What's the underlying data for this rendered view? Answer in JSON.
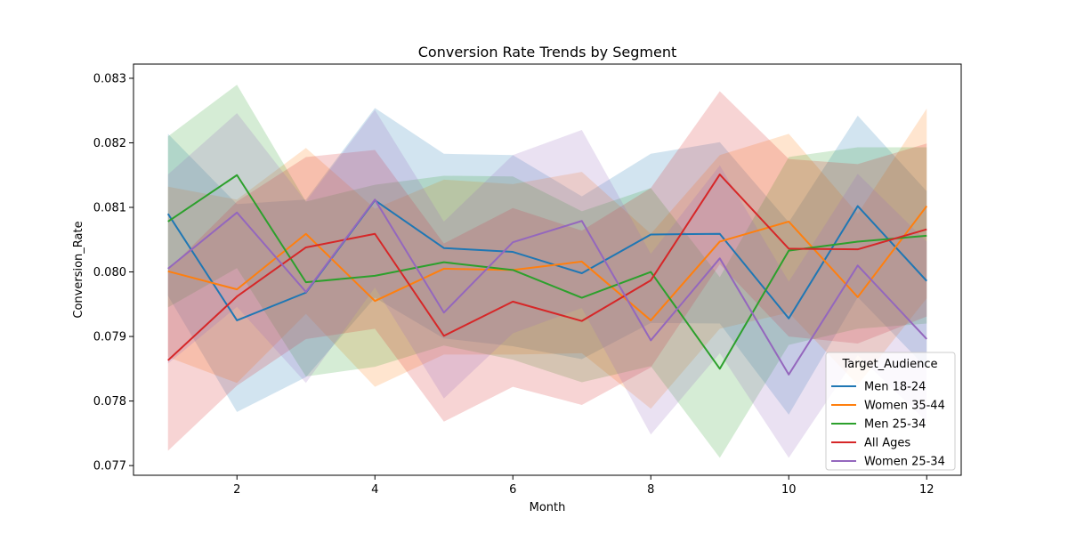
{
  "chart_data": {
    "type": "line",
    "title": "Conversion Rate Trends by Segment",
    "xlabel": "Month",
    "ylabel": "Conversion_Rate",
    "xlim": [
      0.5,
      12.5
    ],
    "ylim": [
      0.07685,
      0.08322
    ],
    "x_ticks": [
      2,
      4,
      6,
      8,
      10,
      12
    ],
    "y_ticks": [
      0.077,
      0.078,
      0.079,
      0.08,
      0.081,
      0.082,
      0.083
    ],
    "grid": false,
    "legend_title": "Target_Audience",
    "legend_position": "lower-right",
    "x": [
      1,
      2,
      3,
      4,
      5,
      6,
      7,
      8,
      9,
      10,
      11,
      12
    ],
    "series": [
      {
        "name": "Men 18-24",
        "color": "#1f77b4",
        "values": [
          0.0809,
          0.07925,
          0.07968,
          0.08111,
          0.08037,
          0.08031,
          0.07998,
          0.08058,
          0.08059,
          0.07928,
          0.08102,
          0.07986
        ],
        "ci_upper": [
          0.08214,
          0.08105,
          0.08112,
          0.08254,
          0.08183,
          0.08181,
          0.08117,
          0.08183,
          0.08201,
          0.08077,
          0.08242,
          0.08125
        ],
        "ci_lower": [
          0.07963,
          0.07783,
          0.07837,
          0.0796,
          0.07897,
          0.07885,
          0.07865,
          0.07921,
          0.0792,
          0.07779,
          0.07961,
          0.07851
        ]
      },
      {
        "name": "Women 35-44",
        "color": "#ff7f0e",
        "values": [
          0.08001,
          0.07973,
          0.08059,
          0.07955,
          0.08005,
          0.08003,
          0.08016,
          0.07925,
          0.08047,
          0.08078,
          0.07961,
          0.08102
        ],
        "ci_upper": [
          0.08132,
          0.08112,
          0.08192,
          0.08098,
          0.08143,
          0.08136,
          0.08155,
          0.08059,
          0.08181,
          0.08214,
          0.0809,
          0.08253
        ],
        "ci_lower": [
          0.07868,
          0.07828,
          0.07935,
          0.07822,
          0.07872,
          0.07872,
          0.07874,
          0.07788,
          0.07912,
          0.07937,
          0.07825,
          0.07959
        ]
      },
      {
        "name": "Men 25-34",
        "color": "#2ca02c",
        "values": [
          0.08078,
          0.0815,
          0.07984,
          0.07994,
          0.08015,
          0.08003,
          0.0796,
          0.08,
          0.0785,
          0.08033,
          0.08047,
          0.08056
        ],
        "ci_upper": [
          0.0821,
          0.0829,
          0.08109,
          0.08135,
          0.08149,
          0.08148,
          0.08094,
          0.0813,
          0.07992,
          0.08178,
          0.08193,
          0.08193
        ],
        "ci_lower": [
          0.07945,
          0.08006,
          0.07838,
          0.07853,
          0.07886,
          0.07864,
          0.07829,
          0.07854,
          0.07712,
          0.07887,
          0.07912,
          0.0792
        ]
      },
      {
        "name": "All Ages",
        "color": "#d62728",
        "values": [
          0.07863,
          0.07962,
          0.08038,
          0.08059,
          0.07901,
          0.07954,
          0.07924,
          0.07987,
          0.08151,
          0.08036,
          0.08035,
          0.08066
        ],
        "ci_upper": [
          0.08003,
          0.08109,
          0.08178,
          0.08189,
          0.08044,
          0.08099,
          0.08064,
          0.0813,
          0.0828,
          0.08175,
          0.08167,
          0.08199
        ],
        "ci_lower": [
          0.07723,
          0.07824,
          0.07896,
          0.07912,
          0.07768,
          0.07822,
          0.07794,
          0.07852,
          0.08012,
          0.079,
          0.07889,
          0.07931
        ]
      },
      {
        "name": "Women 25-34",
        "color": "#9467bd",
        "values": [
          0.08005,
          0.08092,
          0.07969,
          0.08112,
          0.07937,
          0.08046,
          0.08079,
          0.07894,
          0.08021,
          0.07841,
          0.0801,
          0.07896
        ],
        "ci_upper": [
          0.08151,
          0.08246,
          0.08109,
          0.08251,
          0.08078,
          0.08181,
          0.0822,
          0.08028,
          0.08165,
          0.07985,
          0.08152,
          0.08047
        ],
        "ci_lower": [
          0.07858,
          0.07946,
          0.07828,
          0.07976,
          0.07804,
          0.07905,
          0.07944,
          0.07748,
          0.07874,
          0.07712,
          0.07871,
          0.07768
        ]
      }
    ]
  }
}
